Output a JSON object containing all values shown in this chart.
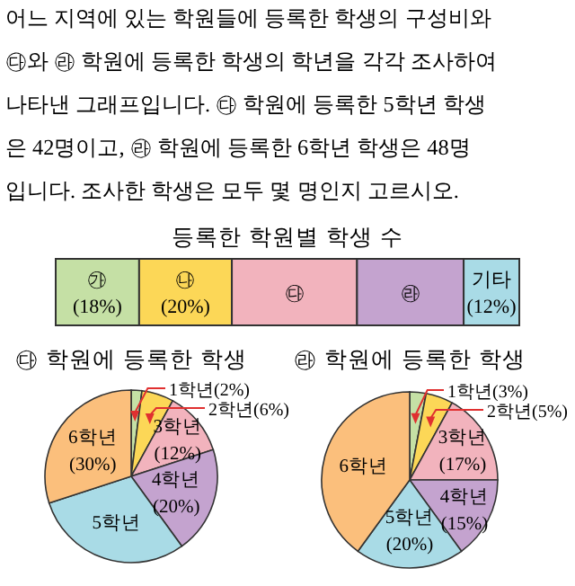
{
  "chart_data": [
    {
      "type": "bar",
      "orientation": "horizontal",
      "stacked": true,
      "title": "등록한 학원별 학생 수",
      "categories": [
        null
      ],
      "xlim": [
        0,
        100
      ],
      "annotations": [
        "어느 지역에 있는 학원들에 등록한 학생의 구성비와",
        "㉰와 ㉱ 학원에 등록한 학생의 학년을 각각 조사하여",
        "나타낸 그래프입니다. ㉰ 학원에 등록한 5학년 학생",
        "은 42명이고, ㉱ 학원에 등록한 6학년 학생은 48명",
        "입니다. 조사한 학생은 모두 몇 명인지 고르시오."
      ],
      "series": [
        {
          "name": "㉮",
          "color": "#c5e0a5",
          "values": [
            18
          ],
          "value_labels": [
            "(18%)"
          ]
        },
        {
          "name": "㉯",
          "color": "#fcd757",
          "values": [
            20
          ],
          "value_labels": [
            "(20%)"
          ]
        },
        {
          "name": "㉰",
          "color": "#f2b3bd",
          "values": [
            27
          ],
          "value_labels": [
            null
          ]
        },
        {
          "name": "㉱",
          "color": "#c4a3cf",
          "values": [
            23
          ],
          "value_labels": [
            null
          ]
        },
        {
          "name": "기타",
          "color": "#a9dbe6",
          "values": [
            12
          ],
          "value_labels": [
            "(12%)"
          ]
        }
      ]
    },
    {
      "type": "pie",
      "title": "㉰ 학원에 등록한 학생",
      "categories": [
        "1학년",
        "2학년",
        "3학년",
        "4학년",
        "5학년",
        "6학년"
      ],
      "values": [
        2,
        6,
        12,
        20,
        30,
        30
      ],
      "value_labels": [
        "(2%)",
        "(6%)",
        "(12%)",
        "(20%)",
        null,
        "(30%)"
      ],
      "colors": [
        "#c5e0a5",
        "#fcd757",
        "#f2b3bd",
        "#c4a3cf",
        "#a9dbe6",
        "#fbbf7c"
      ]
    },
    {
      "type": "pie",
      "title": "㉱ 학원에 등록한 학생",
      "categories": [
        "1학년",
        "2학년",
        "3학년",
        "4학년",
        "5학년",
        "6학년"
      ],
      "values": [
        3,
        5,
        17,
        15,
        20,
        40
      ],
      "value_labels": [
        "(3%)",
        "(5%)",
        "(17%)",
        "(15%)",
        "(20%)",
        null
      ],
      "colors": [
        "#c5e0a5",
        "#fcd757",
        "#f2b3bd",
        "#c4a3cf",
        "#a9dbe6",
        "#fbbf7c"
      ]
    }
  ]
}
